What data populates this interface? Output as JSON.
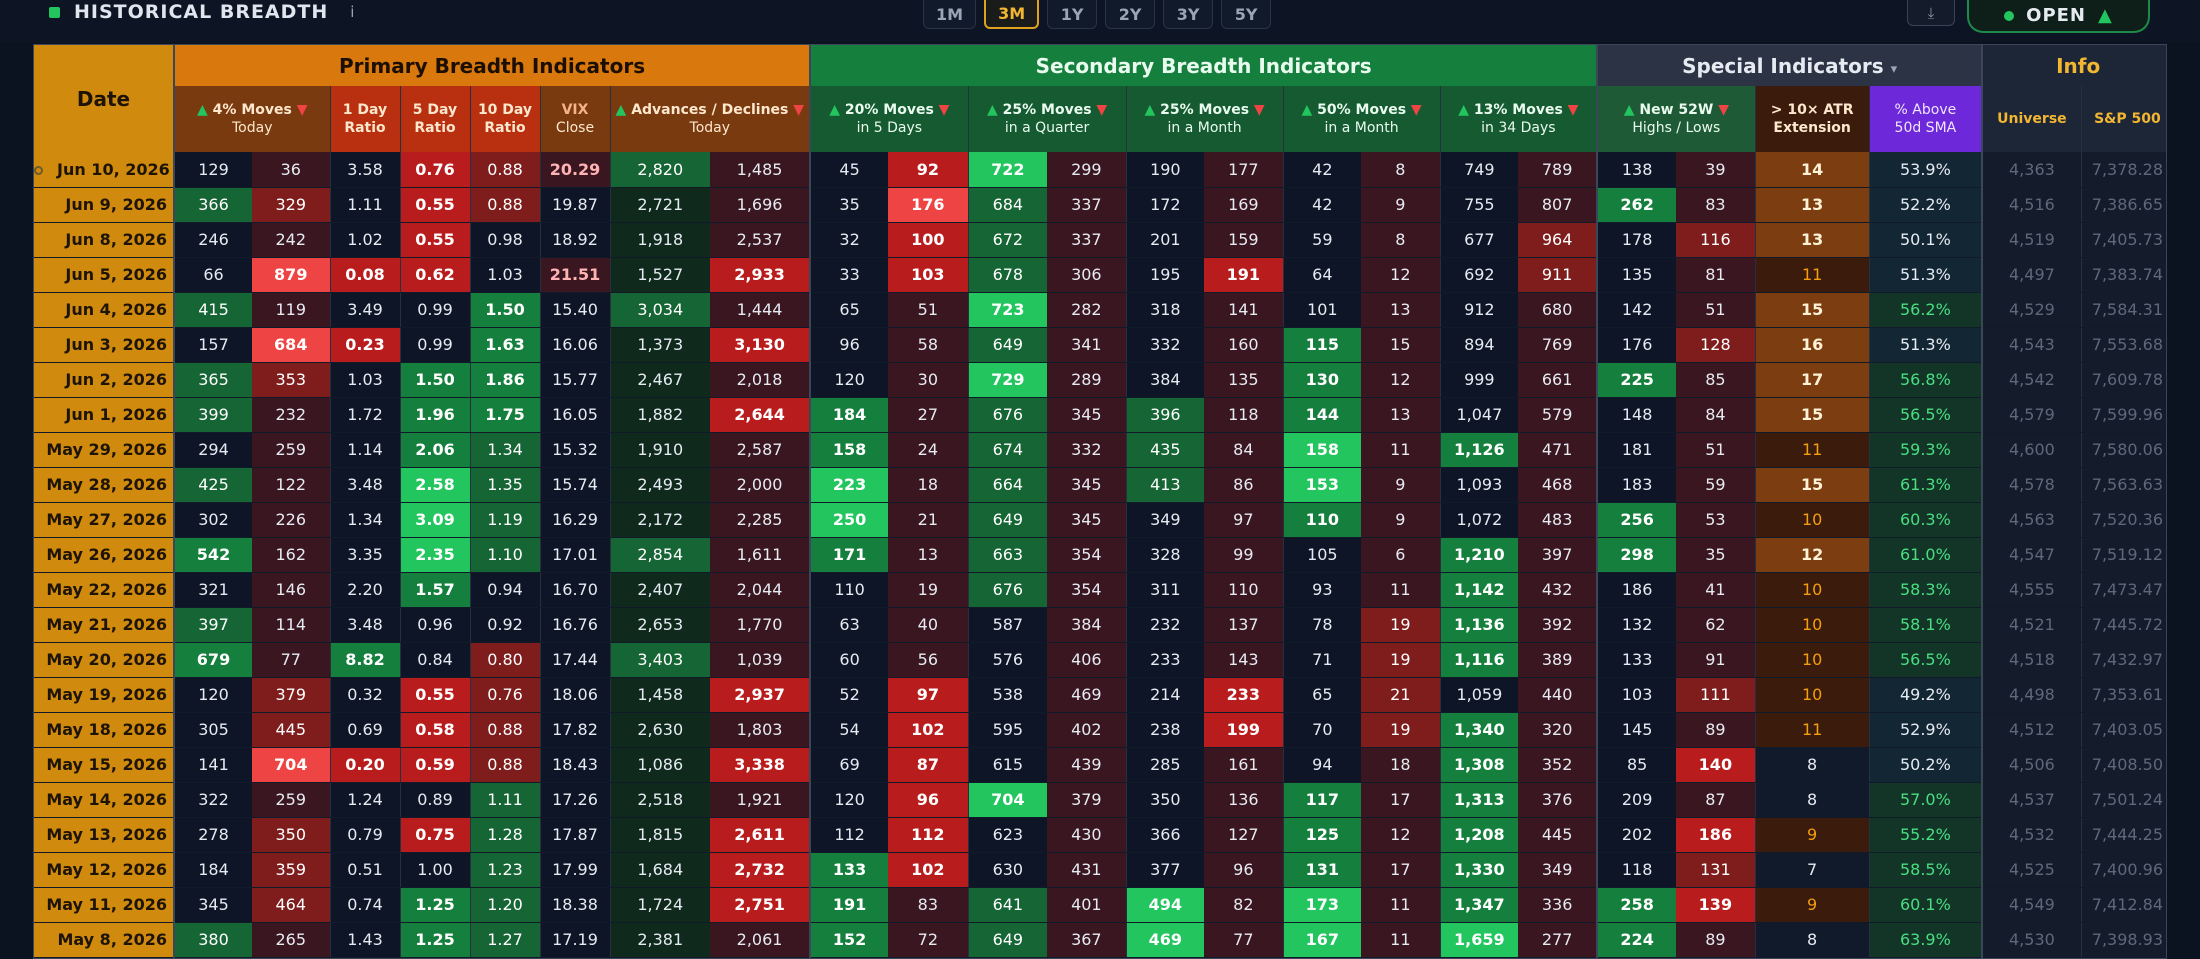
{
  "header": {
    "title": "HISTORICAL BREADTH",
    "info_glyph": "i",
    "ranges": [
      "1M",
      "3M",
      "1Y",
      "2Y",
      "3Y",
      "5Y"
    ],
    "active_range": "3M",
    "download_glyph": "⤓",
    "status_label": "OPEN",
    "status_arrow": "▲"
  },
  "groups": {
    "date": "Date",
    "primary": "Primary Breadth Indicators",
    "secondary": "Secondary Breadth Indicators",
    "special": "Special Indicators",
    "special_caret": "▾",
    "info": "Info"
  },
  "columns": {
    "moves4_l1": "4% Moves",
    "moves4_l2": "Today",
    "ratio1_l1": "1 Day",
    "ratio1_l2": "Ratio",
    "ratio5_l1": "5 Day",
    "ratio5_l2": "Ratio",
    "ratio10_l1": "10 Day",
    "ratio10_l2": "Ratio",
    "vix_l1": "VIX",
    "vix_l2": "Close",
    "advdec_l1": "Advances / Declines",
    "advdec_l2": "Today",
    "m20_l1": "20% Moves",
    "m20_l2": "in 5 Days",
    "m25q_l1": "25% Moves",
    "m25q_l2": "in a Quarter",
    "m25m_l1": "25% Moves",
    "m25m_l2": "in a Month",
    "m50_l1": "50% Moves",
    "m50_l2": "in a Month",
    "m13_l1": "13% Moves",
    "m13_l2": "in 34 Days",
    "new52_l1": "New 52W",
    "new52_l2": "Highs / Lows",
    "atr_l1": "> 10× ATR",
    "atr_l2": "Extension",
    "sma_l1": "% Above",
    "sma_l2": "50d SMA",
    "universe": "Universe",
    "sp500": "S&P 500",
    "arrow_up": "▲",
    "arrow_down": "▼"
  },
  "rows": [
    {
      "date": "Jun 10, 2026",
      "m4u": "129",
      "m4d": "36",
      "r1": "3.58",
      "r5": "0.76",
      "r10": "0.88",
      "vix": "20.29",
      "adv": "2,820",
      "dec": "1,485",
      "m20u": "45",
      "m20d": "92",
      "m25qu": "722",
      "m25qd": "299",
      "m25mu": "190",
      "m25md": "177",
      "m50u": "42",
      "m50d": "8",
      "m13u": "749",
      "m13d": "789",
      "nh": "138",
      "nl": "39",
      "atr": "14",
      "sma": "53.9%",
      "uni": "4,363",
      "sp": "7,378.28"
    },
    {
      "date": "Jun 9, 2026",
      "m4u": "366",
      "m4d": "329",
      "r1": "1.11",
      "r5": "0.55",
      "r10": "0.88",
      "vix": "19.87",
      "adv": "2,721",
      "dec": "1,696",
      "m20u": "35",
      "m20d": "176",
      "m25qu": "684",
      "m25qd": "337",
      "m25mu": "172",
      "m25md": "169",
      "m50u": "42",
      "m50d": "9",
      "m13u": "755",
      "m13d": "807",
      "nh": "262",
      "nl": "83",
      "atr": "13",
      "sma": "52.2%",
      "uni": "4,516",
      "sp": "7,386.65"
    },
    {
      "date": "Jun 8, 2026",
      "m4u": "246",
      "m4d": "242",
      "r1": "1.02",
      "r5": "0.55",
      "r10": "0.98",
      "vix": "18.92",
      "adv": "1,918",
      "dec": "2,537",
      "m20u": "32",
      "m20d": "100",
      "m25qu": "672",
      "m25qd": "337",
      "m25mu": "201",
      "m25md": "159",
      "m50u": "59",
      "m50d": "8",
      "m13u": "677",
      "m13d": "964",
      "nh": "178",
      "nl": "116",
      "atr": "13",
      "sma": "50.1%",
      "uni": "4,519",
      "sp": "7,405.73"
    },
    {
      "date": "Jun 5, 2026",
      "m4u": "66",
      "m4d": "879",
      "r1": "0.08",
      "r5": "0.62",
      "r10": "1.03",
      "vix": "21.51",
      "adv": "1,527",
      "dec": "2,933",
      "m20u": "33",
      "m20d": "103",
      "m25qu": "678",
      "m25qd": "306",
      "m25mu": "195",
      "m25md": "191",
      "m50u": "64",
      "m50d": "12",
      "m13u": "692",
      "m13d": "911",
      "nh": "135",
      "nl": "81",
      "atr": "11",
      "sma": "51.3%",
      "uni": "4,497",
      "sp": "7,383.74"
    },
    {
      "date": "Jun 4, 2026",
      "m4u": "415",
      "m4d": "119",
      "r1": "3.49",
      "r5": "0.99",
      "r10": "1.50",
      "vix": "15.40",
      "adv": "3,034",
      "dec": "1,444",
      "m20u": "65",
      "m20d": "51",
      "m25qu": "723",
      "m25qd": "282",
      "m25mu": "318",
      "m25md": "141",
      "m50u": "101",
      "m50d": "13",
      "m13u": "912",
      "m13d": "680",
      "nh": "142",
      "nl": "51",
      "atr": "15",
      "sma": "56.2%",
      "uni": "4,529",
      "sp": "7,584.31"
    },
    {
      "date": "Jun 3, 2026",
      "m4u": "157",
      "m4d": "684",
      "r1": "0.23",
      "r5": "0.99",
      "r10": "1.63",
      "vix": "16.06",
      "adv": "1,373",
      "dec": "3,130",
      "m20u": "96",
      "m20d": "58",
      "m25qu": "649",
      "m25qd": "341",
      "m25mu": "332",
      "m25md": "160",
      "m50u": "115",
      "m50d": "15",
      "m13u": "894",
      "m13d": "769",
      "nh": "176",
      "nl": "128",
      "atr": "16",
      "sma": "51.3%",
      "uni": "4,543",
      "sp": "7,553.68"
    },
    {
      "date": "Jun 2, 2026",
      "m4u": "365",
      "m4d": "353",
      "r1": "1.03",
      "r5": "1.50",
      "r10": "1.86",
      "vix": "15.77",
      "adv": "2,467",
      "dec": "2,018",
      "m20u": "120",
      "m20d": "30",
      "m25qu": "729",
      "m25qd": "289",
      "m25mu": "384",
      "m25md": "135",
      "m50u": "130",
      "m50d": "12",
      "m13u": "999",
      "m13d": "661",
      "nh": "225",
      "nl": "85",
      "atr": "17",
      "sma": "56.8%",
      "uni": "4,542",
      "sp": "7,609.78"
    },
    {
      "date": "Jun 1, 2026",
      "m4u": "399",
      "m4d": "232",
      "r1": "1.72",
      "r5": "1.96",
      "r10": "1.75",
      "vix": "16.05",
      "adv": "1,882",
      "dec": "2,644",
      "m20u": "184",
      "m20d": "27",
      "m25qu": "676",
      "m25qd": "345",
      "m25mu": "396",
      "m25md": "118",
      "m50u": "144",
      "m50d": "13",
      "m13u": "1,047",
      "m13d": "579",
      "nh": "148",
      "nl": "84",
      "atr": "15",
      "sma": "56.5%",
      "uni": "4,579",
      "sp": "7,599.96"
    },
    {
      "date": "May 29, 2026",
      "m4u": "294",
      "m4d": "259",
      "r1": "1.14",
      "r5": "2.06",
      "r10": "1.34",
      "vix": "15.32",
      "adv": "1,910",
      "dec": "2,587",
      "m20u": "158",
      "m20d": "24",
      "m25qu": "674",
      "m25qd": "332",
      "m25mu": "435",
      "m25md": "84",
      "m50u": "158",
      "m50d": "11",
      "m13u": "1,126",
      "m13d": "471",
      "nh": "181",
      "nl": "51",
      "atr": "11",
      "sma": "59.3%",
      "uni": "4,600",
      "sp": "7,580.06"
    },
    {
      "date": "May 28, 2026",
      "m4u": "425",
      "m4d": "122",
      "r1": "3.48",
      "r5": "2.58",
      "r10": "1.35",
      "vix": "15.74",
      "adv": "2,493",
      "dec": "2,000",
      "m20u": "223",
      "m20d": "18",
      "m25qu": "664",
      "m25qd": "345",
      "m25mu": "413",
      "m25md": "86",
      "m50u": "153",
      "m50d": "9",
      "m13u": "1,093",
      "m13d": "468",
      "nh": "183",
      "nl": "59",
      "atr": "15",
      "sma": "61.3%",
      "uni": "4,578",
      "sp": "7,563.63"
    },
    {
      "date": "May 27, 2026",
      "m4u": "302",
      "m4d": "226",
      "r1": "1.34",
      "r5": "3.09",
      "r10": "1.19",
      "vix": "16.29",
      "adv": "2,172",
      "dec": "2,285",
      "m20u": "250",
      "m20d": "21",
      "m25qu": "649",
      "m25qd": "345",
      "m25mu": "349",
      "m25md": "97",
      "m50u": "110",
      "m50d": "9",
      "m13u": "1,072",
      "m13d": "483",
      "nh": "256",
      "nl": "53",
      "atr": "10",
      "sma": "60.3%",
      "uni": "4,563",
      "sp": "7,520.36"
    },
    {
      "date": "May 26, 2026",
      "m4u": "542",
      "m4d": "162",
      "r1": "3.35",
      "r5": "2.35",
      "r10": "1.10",
      "vix": "17.01",
      "adv": "2,854",
      "dec": "1,611",
      "m20u": "171",
      "m20d": "13",
      "m25qu": "663",
      "m25qd": "354",
      "m25mu": "328",
      "m25md": "99",
      "m50u": "105",
      "m50d": "6",
      "m13u": "1,210",
      "m13d": "397",
      "nh": "298",
      "nl": "35",
      "atr": "12",
      "sma": "61.0%",
      "uni": "4,547",
      "sp": "7,519.12"
    },
    {
      "date": "May 22, 2026",
      "m4u": "321",
      "m4d": "146",
      "r1": "2.20",
      "r5": "1.57",
      "r10": "0.94",
      "vix": "16.70",
      "adv": "2,407",
      "dec": "2,044",
      "m20u": "110",
      "m20d": "19",
      "m25qu": "676",
      "m25qd": "354",
      "m25mu": "311",
      "m25md": "110",
      "m50u": "93",
      "m50d": "11",
      "m13u": "1,142",
      "m13d": "432",
      "nh": "186",
      "nl": "41",
      "atr": "10",
      "sma": "58.3%",
      "uni": "4,555",
      "sp": "7,473.47"
    },
    {
      "date": "May 21, 2026",
      "m4u": "397",
      "m4d": "114",
      "r1": "3.48",
      "r5": "0.96",
      "r10": "0.92",
      "vix": "16.76",
      "adv": "2,653",
      "dec": "1,770",
      "m20u": "63",
      "m20d": "40",
      "m25qu": "587",
      "m25qd": "384",
      "m25mu": "232",
      "m25md": "137",
      "m50u": "78",
      "m50d": "19",
      "m13u": "1,136",
      "m13d": "392",
      "nh": "132",
      "nl": "62",
      "atr": "10",
      "sma": "58.1%",
      "uni": "4,521",
      "sp": "7,445.72"
    },
    {
      "date": "May 20, 2026",
      "m4u": "679",
      "m4d": "77",
      "r1": "8.82",
      "r5": "0.84",
      "r10": "0.80",
      "vix": "17.44",
      "adv": "3,403",
      "dec": "1,039",
      "m20u": "60",
      "m20d": "56",
      "m25qu": "576",
      "m25qd": "406",
      "m25mu": "233",
      "m25md": "143",
      "m50u": "71",
      "m50d": "19",
      "m13u": "1,116",
      "m13d": "389",
      "nh": "133",
      "nl": "91",
      "atr": "10",
      "sma": "56.5%",
      "uni": "4,518",
      "sp": "7,432.97"
    },
    {
      "date": "May 19, 2026",
      "m4u": "120",
      "m4d": "379",
      "r1": "0.32",
      "r5": "0.55",
      "r10": "0.76",
      "vix": "18.06",
      "adv": "1,458",
      "dec": "2,937",
      "m20u": "52",
      "m20d": "97",
      "m25qu": "538",
      "m25qd": "469",
      "m25mu": "214",
      "m25md": "233",
      "m50u": "65",
      "m50d": "21",
      "m13u": "1,059",
      "m13d": "440",
      "nh": "103",
      "nl": "111",
      "atr": "10",
      "sma": "49.2%",
      "uni": "4,498",
      "sp": "7,353.61"
    },
    {
      "date": "May 18, 2026",
      "m4u": "305",
      "m4d": "445",
      "r1": "0.69",
      "r5": "0.58",
      "r10": "0.88",
      "vix": "17.82",
      "adv": "2,630",
      "dec": "1,803",
      "m20u": "54",
      "m20d": "102",
      "m25qu": "595",
      "m25qd": "402",
      "m25mu": "238",
      "m25md": "199",
      "m50u": "70",
      "m50d": "19",
      "m13u": "1,340",
      "m13d": "320",
      "nh": "145",
      "nl": "89",
      "atr": "11",
      "sma": "52.9%",
      "uni": "4,512",
      "sp": "7,403.05"
    },
    {
      "date": "May 15, 2026",
      "m4u": "141",
      "m4d": "704",
      "r1": "0.20",
      "r5": "0.59",
      "r10": "0.88",
      "vix": "18.43",
      "adv": "1,086",
      "dec": "3,338",
      "m20u": "69",
      "m20d": "87",
      "m25qu": "615",
      "m25qd": "439",
      "m25mu": "285",
      "m25md": "161",
      "m50u": "94",
      "m50d": "18",
      "m13u": "1,308",
      "m13d": "352",
      "nh": "85",
      "nl": "140",
      "atr": "8",
      "sma": "50.2%",
      "uni": "4,506",
      "sp": "7,408.50"
    },
    {
      "date": "May 14, 2026",
      "m4u": "322",
      "m4d": "259",
      "r1": "1.24",
      "r5": "0.89",
      "r10": "1.11",
      "vix": "17.26",
      "adv": "2,518",
      "dec": "1,921",
      "m20u": "120",
      "m20d": "96",
      "m25qu": "704",
      "m25qd": "379",
      "m25mu": "350",
      "m25md": "136",
      "m50u": "117",
      "m50d": "17",
      "m13u": "1,313",
      "m13d": "376",
      "nh": "209",
      "nl": "87",
      "atr": "8",
      "sma": "57.0%",
      "uni": "4,537",
      "sp": "7,501.24"
    },
    {
      "date": "May 13, 2026",
      "m4u": "278",
      "m4d": "350",
      "r1": "0.79",
      "r5": "0.75",
      "r10": "1.28",
      "vix": "17.87",
      "adv": "1,815",
      "dec": "2,611",
      "m20u": "112",
      "m20d": "112",
      "m25qu": "623",
      "m25qd": "430",
      "m25mu": "366",
      "m25md": "127",
      "m50u": "125",
      "m50d": "12",
      "m13u": "1,208",
      "m13d": "445",
      "nh": "202",
      "nl": "186",
      "atr": "9",
      "sma": "55.2%",
      "uni": "4,532",
      "sp": "7,444.25"
    },
    {
      "date": "May 12, 2026",
      "m4u": "184",
      "m4d": "359",
      "r1": "0.51",
      "r5": "1.00",
      "r10": "1.23",
      "vix": "17.99",
      "adv": "1,684",
      "dec": "2,732",
      "m20u": "133",
      "m20d": "102",
      "m25qu": "630",
      "m25qd": "431",
      "m25mu": "377",
      "m25md": "96",
      "m50u": "131",
      "m50d": "17",
      "m13u": "1,330",
      "m13d": "349",
      "nh": "118",
      "nl": "131",
      "atr": "7",
      "sma": "58.5%",
      "uni": "4,525",
      "sp": "7,400.96"
    },
    {
      "date": "May 11, 2026",
      "m4u": "345",
      "m4d": "464",
      "r1": "0.74",
      "r5": "1.25",
      "r10": "1.20",
      "vix": "18.38",
      "adv": "1,724",
      "dec": "2,751",
      "m20u": "191",
      "m20d": "83",
      "m25qu": "641",
      "m25qd": "401",
      "m25mu": "494",
      "m25md": "82",
      "m50u": "173",
      "m50d": "11",
      "m13u": "1,347",
      "m13d": "336",
      "nh": "258",
      "nl": "139",
      "atr": "9",
      "sma": "60.1%",
      "uni": "4,549",
      "sp": "7,412.84"
    },
    {
      "date": "May 8, 2026",
      "m4u": "380",
      "m4d": "265",
      "r1": "1.43",
      "r5": "1.25",
      "r10": "1.27",
      "vix": "17.19",
      "adv": "2,381",
      "dec": "2,061",
      "m20u": "152",
      "m20d": "72",
      "m25qu": "649",
      "m25qd": "367",
      "m25mu": "469",
      "m25md": "77",
      "m50u": "167",
      "m50d": "11",
      "m13u": "1,659",
      "m13d": "277",
      "nh": "224",
      "nl": "89",
      "atr": "8",
      "sma": "63.9%",
      "uni": "4,530",
      "sp": "7,398.93"
    }
  ]
}
